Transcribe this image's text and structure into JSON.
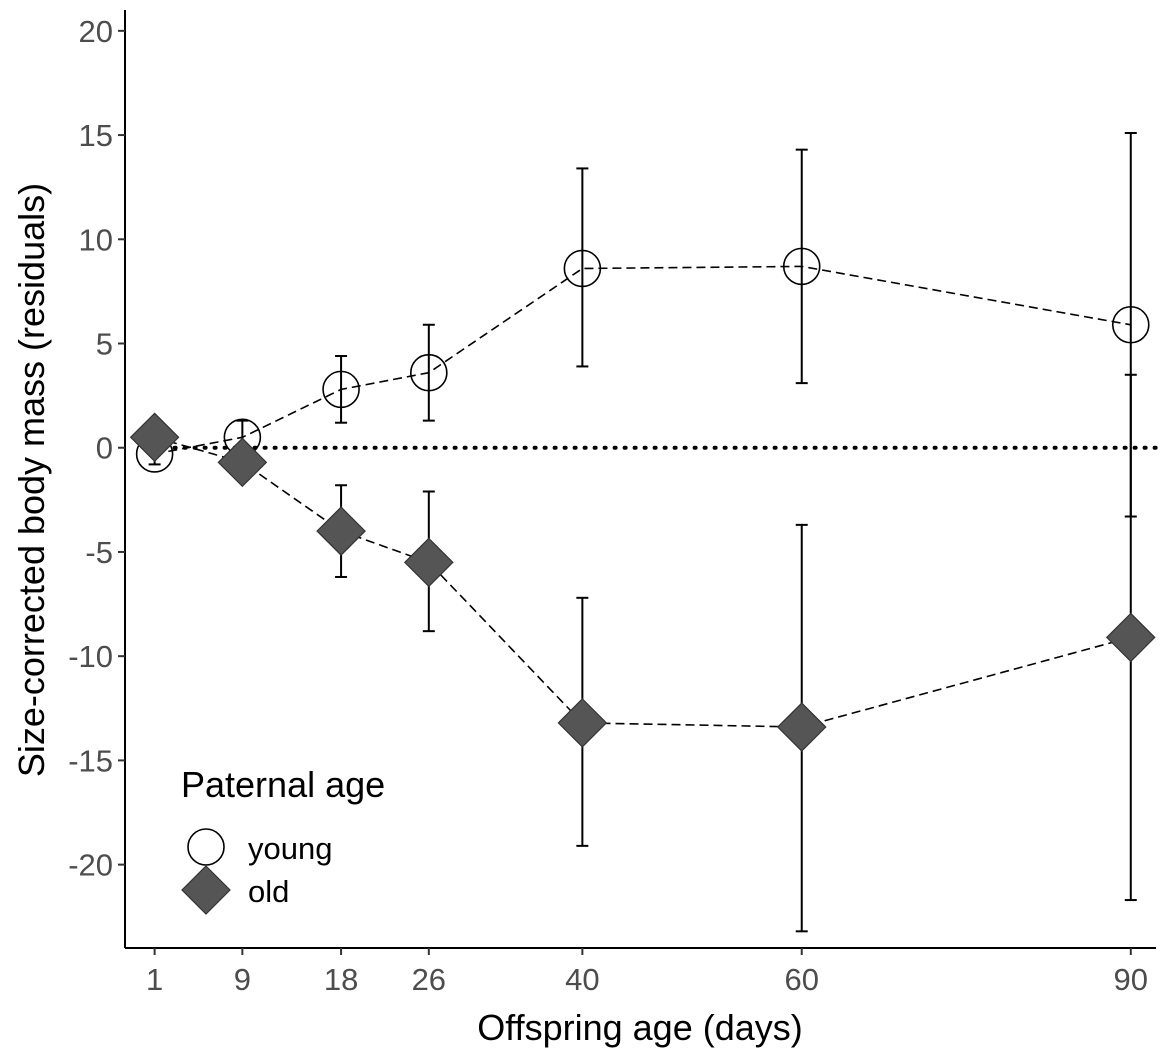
{
  "chart_data": {
    "type": "line",
    "xlabel": "Offspring age (days)",
    "ylabel": "Size-corrected body mass (residuals)",
    "x": [
      1,
      9,
      18,
      26,
      40,
      60,
      90
    ],
    "x_tick_labels": [
      "1",
      "9",
      "18",
      "26",
      "40",
      "60",
      "90"
    ],
    "xlim": [
      -1.7,
      92.3
    ],
    "ylim": [
      -24,
      21
    ],
    "y_ticks": [
      20,
      15,
      10,
      5,
      0,
      -5,
      -10,
      -15,
      -20
    ],
    "y_tick_labels": [
      "20",
      "15",
      "10",
      "5",
      "0",
      "-5",
      "-10",
      "-15",
      "-20"
    ],
    "reference_line": {
      "y": 0,
      "style": "dotted"
    },
    "grid": false,
    "legend": {
      "title": "Paternal age",
      "placement": "bottom-left, inside plot"
    },
    "series": [
      {
        "name": "young",
        "marker": "open-circle",
        "line_style": "dashed",
        "color": "#000000",
        "fill": "#ffffff",
        "values": [
          -0.3,
          0.5,
          2.8,
          3.6,
          8.6,
          8.7,
          5.9
        ],
        "err_low": [
          -0.8,
          -0.2,
          1.2,
          1.3,
          3.9,
          3.1,
          -3.3
        ],
        "err_high": [
          0.2,
          1.3,
          4.4,
          5.9,
          13.4,
          14.3,
          15.1
        ]
      },
      {
        "name": "old",
        "marker": "filled-diamond",
        "line_style": "dashed",
        "color": "#000000",
        "fill": "#555555",
        "values": [
          0.5,
          -0.7,
          -4.0,
          -5.5,
          -13.2,
          -13.4,
          -9.1
        ],
        "err_low": [
          0.2,
          -1.4,
          -6.2,
          -8.8,
          -19.1,
          -23.2,
          -21.7
        ],
        "err_high": [
          0.8,
          0.0,
          -1.8,
          -2.1,
          -7.2,
          -3.7,
          3.5
        ]
      }
    ]
  }
}
